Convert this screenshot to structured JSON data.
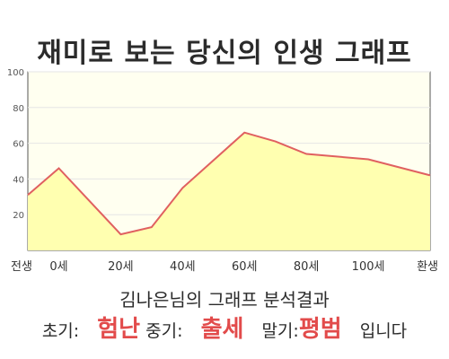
{
  "title": "재미로 보는 당신의 인생 그래프",
  "chart_data": {
    "type": "area",
    "x": [
      -10,
      0,
      20,
      30,
      40,
      60,
      70,
      80,
      100,
      120
    ],
    "y": [
      31,
      46,
      9,
      13,
      35,
      66,
      61,
      54,
      51,
      42
    ],
    "xlim": [
      -10,
      120
    ],
    "ylim": [
      0,
      100
    ],
    "y_ticks": [
      20,
      40,
      60,
      80,
      100
    ],
    "x_ticks": [
      {
        "x": -10,
        "label": "전생"
      },
      {
        "x": 0,
        "label": "0세"
      },
      {
        "x": 20,
        "label": "20세"
      },
      {
        "x": 40,
        "label": "40세"
      },
      {
        "x": 60,
        "label": "60세"
      },
      {
        "x": 80,
        "label": "80세"
      },
      {
        "x": 100,
        "label": "100세"
      },
      {
        "x": 120,
        "label": "환생"
      }
    ],
    "grid": true,
    "colors": {
      "line": "#e06060",
      "fill": "#ffffb0",
      "plot_bg": "#fffff0"
    }
  },
  "subtitle": "김나은님의 그래프 분석결과",
  "result": {
    "early_label": "초기:",
    "early_value": "험난",
    "mid_label": "중기:",
    "mid_value": "출세",
    "late_label": "말기:",
    "late_value": "평범",
    "ending": "입니다"
  }
}
